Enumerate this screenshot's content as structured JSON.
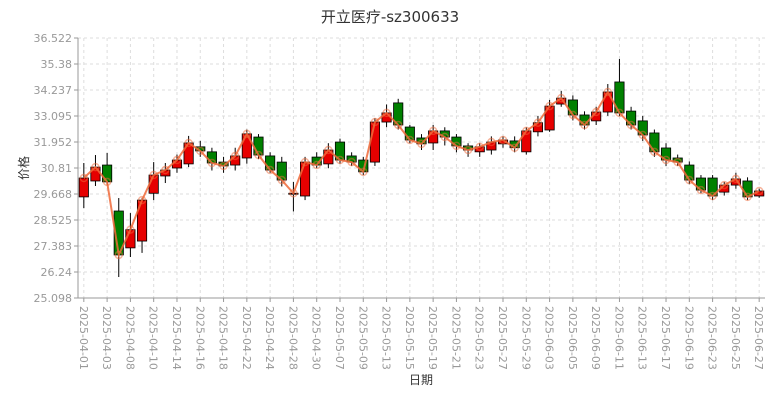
{
  "chart_data": {
    "type": "candlestick",
    "title": "开立医疗-sz300633",
    "x_label": "日期",
    "y_label": "价格",
    "categories": [
      "2025-04-01",
      null,
      "2025-04-03",
      null,
      "2025-04-08",
      null,
      "2025-04-10",
      null,
      "2025-04-14",
      null,
      "2025-04-16",
      null,
      "2025-04-18",
      null,
      "2025-04-22",
      null,
      "2025-04-24",
      null,
      "2025-04-28",
      null,
      "2025-04-30",
      null,
      "2025-05-07",
      null,
      "2025-05-09",
      null,
      "2025-05-13",
      null,
      "2025-05-15",
      null,
      "2025-05-19",
      null,
      "2025-05-21",
      null,
      "2025-05-23",
      null,
      "2025-05-27",
      null,
      "2025-05-29",
      null,
      "2025-06-03",
      null,
      "2025-06-05",
      null,
      "2025-06-09",
      null,
      "2025-06-11",
      null,
      "2025-06-13",
      null,
      "2025-06-17",
      null,
      "2025-06-19",
      null,
      "2025-06-23",
      null,
      "2025-06-25",
      null,
      "2025-06-27"
    ],
    "open": [
      29.54,
      30.24,
      30.94,
      28.92,
      27.3,
      27.6,
      29.7,
      30.46,
      30.81,
      30.99,
      31.74,
      31.52,
      31.07,
      30.94,
      31.25,
      32.17,
      31.34,
      31.07,
      29.66,
      29.58,
      31.29,
      30.99,
      31.95,
      31.34,
      31.16,
      31.07,
      32.83,
      33.67,
      32.61,
      32.13,
      31.91,
      32.44,
      32.17,
      31.78,
      31.52,
      31.6,
      31.87,
      32.0,
      31.52,
      32.4,
      32.48,
      33.62,
      33.8,
      33.14,
      32.88,
      33.27,
      34.59,
      33.31,
      32.88,
      32.35,
      31.69,
      31.25,
      30.94,
      30.37,
      30.37,
      29.75,
      30.06,
      30.24,
      29.58
    ],
    "high": [
      31.03,
      31.38,
      31.47,
      29.49,
      28.83,
      29.5,
      31.07,
      31.03,
      31.4,
      32.22,
      32.0,
      31.7,
      31.3,
      31.7,
      32.5,
      32.3,
      31.5,
      31.3,
      30.2,
      31.3,
      31.5,
      31.9,
      32.1,
      31.5,
      31.3,
      33.0,
      33.6,
      33.85,
      32.7,
      32.3,
      32.7,
      32.6,
      32.3,
      31.9,
      31.9,
      32.2,
      32.2,
      32.2,
      32.6,
      33.1,
      33.8,
      34.2,
      34.0,
      33.3,
      33.5,
      34.5,
      35.6,
      33.5,
      33.1,
      32.5,
      31.9,
      31.4,
      31.1,
      30.5,
      30.5,
      30.2,
      30.6,
      30.4,
      29.9
    ],
    "low": [
      29.05,
      30.02,
      30.06,
      26.02,
      26.9,
      27.08,
      29.4,
      30.15,
      30.6,
      30.85,
      31.3,
      30.7,
      30.6,
      30.7,
      31.0,
      31.2,
      30.6,
      30.0,
      28.9,
      29.4,
      30.8,
      30.8,
      31.0,
      30.9,
      30.5,
      30.9,
      32.6,
      32.5,
      31.9,
      31.6,
      31.6,
      31.8,
      31.5,
      31.3,
      31.3,
      31.4,
      31.7,
      31.5,
      31.4,
      32.2,
      32.4,
      33.5,
      32.9,
      32.5,
      32.7,
      33.1,
      33.1,
      32.5,
      32.0,
      31.3,
      30.9,
      30.9,
      30.1,
      29.7,
      29.4,
      29.6,
      29.9,
      29.4,
      29.5
    ],
    "close": [
      30.37,
      30.85,
      30.2,
      26.99,
      28.1,
      29.4,
      30.5,
      30.72,
      31.16,
      31.91,
      31.56,
      31.03,
      30.9,
      31.34,
      32.31,
      31.38,
      30.72,
      30.28,
      29.7,
      31.07,
      30.94,
      31.6,
      31.16,
      31.07,
      30.64,
      32.83,
      33.23,
      32.7,
      32.04,
      31.87,
      32.44,
      32.17,
      31.78,
      31.6,
      31.74,
      31.95,
      32.04,
      31.7,
      32.44,
      32.8,
      33.53,
      33.88,
      33.14,
      32.7,
      33.27,
      34.15,
      33.23,
      32.7,
      32.26,
      31.52,
      31.16,
      31.07,
      30.28,
      29.84,
      29.58,
      30.06,
      30.33,
      29.54,
      29.8
    ],
    "up_color": "#e60000",
    "down_color": "#008000",
    "line_color": "#f06a3a",
    "ylim": [
      25.098,
      36.522
    ],
    "yticks": [
      25.098,
      26.24,
      27.383,
      28.525,
      29.668,
      30.81,
      31.952,
      33.095,
      34.237,
      35.38,
      36.522
    ],
    "grid": true
  }
}
